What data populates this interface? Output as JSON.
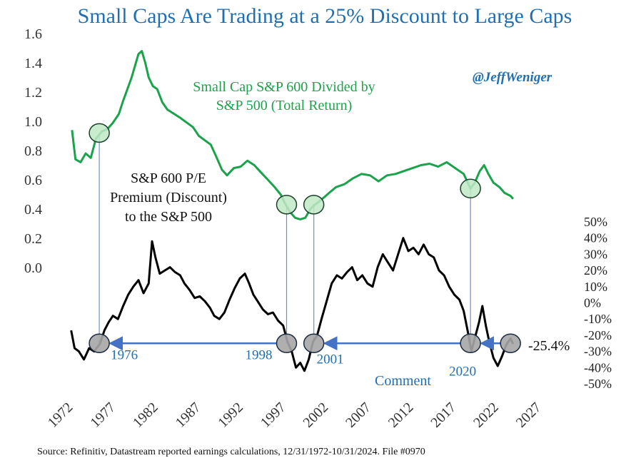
{
  "chart_data": {
    "type": "line",
    "title": "Small Caps Are Trading at a 25% Discount to Large Caps",
    "handle": "@JeffWeniger",
    "source": "Source: Refinitiv, Datastream reported earnings calculations, 12/31/1972-10/31/2024. File #0970",
    "x_ticks": [
      "1972",
      "1977",
      "1982",
      "1987",
      "1992",
      "1997",
      "2002",
      "2007",
      "2012",
      "2017",
      "2022",
      "2027"
    ],
    "x_range": [
      1972,
      2027
    ],
    "left_axis": {
      "range": [
        -0.4,
        1.6
      ],
      "ticks": [
        "1.6",
        "1.4",
        "1.2",
        "1.0",
        "0.8",
        "0.6",
        "0.4",
        "0.2",
        "0.0"
      ],
      "tick_values": [
        1.6,
        1.4,
        1.2,
        1.0,
        0.8,
        0.6,
        0.4,
        0.2,
        0.0
      ]
    },
    "right_axis": {
      "range": [
        -0.5,
        0.6
      ],
      "ticks": [
        "50%",
        "40%",
        "30%",
        "20%",
        "10%",
        "0%",
        "-10%",
        "-20%",
        "-30%",
        "-40%",
        "-50%"
      ],
      "tick_values": [
        0.5,
        0.4,
        0.3,
        0.2,
        0.1,
        0.0,
        -0.1,
        -0.2,
        -0.3,
        -0.4,
        -0.5
      ]
    },
    "series": [
      {
        "name": "Small Cap S&P 600 Divided by S&P 500 (Total Return)",
        "label_lines": [
          "Small Cap S&P 600 Divided by",
          "S&P 500 (Total Return)"
        ],
        "axis": "left",
        "color": "#1aa34a",
        "points": [
          [
            1973.0,
            0.94
          ],
          [
            1973.4,
            0.74
          ],
          [
            1974.0,
            0.72
          ],
          [
            1974.6,
            0.78
          ],
          [
            1975.2,
            0.75
          ],
          [
            1975.8,
            0.88
          ],
          [
            1976.5,
            0.93
          ],
          [
            1977.2,
            0.95
          ],
          [
            1977.8,
            0.99
          ],
          [
            1978.5,
            1.05
          ],
          [
            1979.0,
            1.14
          ],
          [
            1979.5,
            1.22
          ],
          [
            1980.0,
            1.3
          ],
          [
            1980.4,
            1.38
          ],
          [
            1980.8,
            1.46
          ],
          [
            1981.2,
            1.48
          ],
          [
            1981.6,
            1.4
          ],
          [
            1982.0,
            1.3
          ],
          [
            1982.5,
            1.24
          ],
          [
            1983.0,
            1.22
          ],
          [
            1983.6,
            1.13
          ],
          [
            1984.2,
            1.08
          ],
          [
            1985.0,
            1.05
          ],
          [
            1985.8,
            1.02
          ],
          [
            1986.5,
            0.99
          ],
          [
            1987.2,
            0.96
          ],
          [
            1987.9,
            0.9
          ],
          [
            1988.6,
            0.87
          ],
          [
            1989.3,
            0.84
          ],
          [
            1990.0,
            0.75
          ],
          [
            1990.6,
            0.67
          ],
          [
            1991.2,
            0.63
          ],
          [
            1992.0,
            0.68
          ],
          [
            1992.8,
            0.69
          ],
          [
            1993.6,
            0.73
          ],
          [
            1994.4,
            0.7
          ],
          [
            1995.2,
            0.65
          ],
          [
            1996.0,
            0.6
          ],
          [
            1996.8,
            0.55
          ],
          [
            1997.5,
            0.5
          ],
          [
            1998.0,
            0.44
          ],
          [
            1998.6,
            0.38
          ],
          [
            1999.2,
            0.34
          ],
          [
            1999.8,
            0.33
          ],
          [
            2000.4,
            0.34
          ],
          [
            2001.0,
            0.4
          ],
          [
            2001.5,
            0.43
          ],
          [
            2002.0,
            0.45
          ],
          [
            2002.6,
            0.48
          ],
          [
            2003.2,
            0.51
          ],
          [
            2004.0,
            0.55
          ],
          [
            2005.0,
            0.57
          ],
          [
            2006.0,
            0.61
          ],
          [
            2007.0,
            0.64
          ],
          [
            2008.0,
            0.63
          ],
          [
            2009.0,
            0.59
          ],
          [
            2010.0,
            0.63
          ],
          [
            2011.0,
            0.64
          ],
          [
            2012.0,
            0.66
          ],
          [
            2013.0,
            0.68
          ],
          [
            2014.0,
            0.7
          ],
          [
            2015.0,
            0.71
          ],
          [
            2016.0,
            0.69
          ],
          [
            2017.0,
            0.72
          ],
          [
            2018.0,
            0.68
          ],
          [
            2019.0,
            0.64
          ],
          [
            2019.8,
            0.54
          ],
          [
            2020.3,
            0.58
          ],
          [
            2020.9,
            0.66
          ],
          [
            2021.4,
            0.7
          ],
          [
            2021.9,
            0.64
          ],
          [
            2022.5,
            0.58
          ],
          [
            2023.2,
            0.55
          ],
          [
            2023.8,
            0.51
          ],
          [
            2024.5,
            0.49
          ],
          [
            2024.8,
            0.47
          ]
        ]
      },
      {
        "name": "S&P 600 P/E Premium (Discount) to the S&P 500",
        "label_lines": [
          "S&P 600 P/E",
          "Premium (Discount)",
          "to the S&P 500"
        ],
        "axis": "right",
        "color": "#000000",
        "points": [
          [
            1972.9,
            -0.17
          ],
          [
            1973.3,
            -0.28
          ],
          [
            1973.8,
            -0.3
          ],
          [
            1974.4,
            -0.35
          ],
          [
            1975.0,
            -0.28
          ],
          [
            1975.6,
            -0.3
          ],
          [
            1976.3,
            -0.25
          ],
          [
            1976.8,
            -0.17
          ],
          [
            1977.3,
            -0.12
          ],
          [
            1977.8,
            -0.08
          ],
          [
            1978.4,
            -0.1
          ],
          [
            1979.0,
            -0.02
          ],
          [
            1979.6,
            0.05
          ],
          [
            1980.2,
            0.1
          ],
          [
            1980.8,
            0.14
          ],
          [
            1981.4,
            0.06
          ],
          [
            1982.0,
            0.12
          ],
          [
            1982.4,
            0.38
          ],
          [
            1982.8,
            0.28
          ],
          [
            1983.3,
            0.18
          ],
          [
            1983.9,
            0.2
          ],
          [
            1984.5,
            0.22
          ],
          [
            1985.1,
            0.19
          ],
          [
            1985.7,
            0.17
          ],
          [
            1986.2,
            0.12
          ],
          [
            1986.8,
            0.08
          ],
          [
            1987.4,
            0.03
          ],
          [
            1988.0,
            0.04
          ],
          [
            1988.6,
            0.01
          ],
          [
            1989.2,
            -0.03
          ],
          [
            1989.7,
            -0.08
          ],
          [
            1990.3,
            -0.1
          ],
          [
            1990.9,
            -0.06
          ],
          [
            1991.5,
            0.02
          ],
          [
            1992.1,
            0.09
          ],
          [
            1992.7,
            0.15
          ],
          [
            1993.3,
            0.18
          ],
          [
            1993.8,
            0.12
          ],
          [
            1994.3,
            0.05
          ],
          [
            1994.8,
            0.01
          ],
          [
            1995.4,
            -0.04
          ],
          [
            1996.0,
            -0.07
          ],
          [
            1996.6,
            -0.06
          ],
          [
            1997.2,
            -0.11
          ],
          [
            1997.8,
            -0.14
          ],
          [
            1998.3,
            -0.24
          ],
          [
            1998.8,
            -0.3
          ],
          [
            1999.3,
            -0.4
          ],
          [
            1999.8,
            -0.37
          ],
          [
            2000.3,
            -0.42
          ],
          [
            2000.8,
            -0.35
          ],
          [
            2001.3,
            -0.24
          ],
          [
            2001.8,
            -0.2
          ],
          [
            2002.3,
            -0.1
          ],
          [
            2002.9,
            0.01
          ],
          [
            2003.5,
            0.12
          ],
          [
            2004.1,
            0.17
          ],
          [
            2004.7,
            0.15
          ],
          [
            2005.3,
            0.19
          ],
          [
            2005.9,
            0.22
          ],
          [
            2006.5,
            0.14
          ],
          [
            2007.1,
            0.17
          ],
          [
            2007.7,
            0.12
          ],
          [
            2008.3,
            0.1
          ],
          [
            2008.9,
            0.22
          ],
          [
            2009.5,
            0.3
          ],
          [
            2010.1,
            0.25
          ],
          [
            2010.7,
            0.2
          ],
          [
            2011.3,
            0.3
          ],
          [
            2011.9,
            0.4
          ],
          [
            2012.5,
            0.32
          ],
          [
            2013.1,
            0.34
          ],
          [
            2013.7,
            0.3
          ],
          [
            2014.3,
            0.36
          ],
          [
            2014.9,
            0.3
          ],
          [
            2015.5,
            0.28
          ],
          [
            2016.1,
            0.2
          ],
          [
            2016.7,
            0.17
          ],
          [
            2017.3,
            0.1
          ],
          [
            2017.9,
            0.05
          ],
          [
            2018.5,
            0.02
          ],
          [
            2019.0,
            -0.05
          ],
          [
            2019.5,
            -0.18
          ],
          [
            2019.9,
            -0.3
          ],
          [
            2020.3,
            -0.22
          ],
          [
            2020.8,
            -0.12
          ],
          [
            2021.2,
            -0.02
          ],
          [
            2021.6,
            -0.14
          ],
          [
            2022.0,
            -0.24
          ],
          [
            2022.5,
            -0.34
          ],
          [
            2023.0,
            -0.39
          ],
          [
            2023.5,
            -0.33
          ],
          [
            2024.0,
            -0.26
          ],
          [
            2024.5,
            -0.22
          ],
          [
            2024.8,
            -0.254
          ]
        ]
      }
    ],
    "highlights": [
      {
        "x": 1976.2,
        "green_y": 0.92,
        "black_y": -0.25,
        "label": "1976"
      },
      {
        "x": 1998.2,
        "green_y": 0.43,
        "black_y": -0.25,
        "label": "1998"
      },
      {
        "x": 2001.4,
        "green_y": 0.43,
        "black_y": -0.25,
        "label": "2001"
      },
      {
        "x": 2019.8,
        "green_y": 0.54,
        "black_y": -0.25,
        "label": "2020"
      },
      {
        "x": 2024.5,
        "green_y": null,
        "black_y": -0.25,
        "label": null
      }
    ],
    "arrows": [
      {
        "from": 1998.2,
        "to": 1976.2,
        "value": -0.25
      },
      {
        "from": 2019.8,
        "to": 2001.4,
        "value": -0.25
      },
      {
        "from": 2024.5,
        "to": 2019.8,
        "value": -0.25
      }
    ],
    "annotations": {
      "end_value": "-25.4%",
      "comment": "Comment"
    },
    "colors": {
      "title": "#1f6fb2",
      "green_line": "#1aa34a",
      "black_line": "#000000",
      "arrow": "#4472c4",
      "green_circle_fill": "#bfe7c6",
      "gray_circle_fill": "#a6a6a6",
      "connector": "#6f8fc8"
    }
  }
}
